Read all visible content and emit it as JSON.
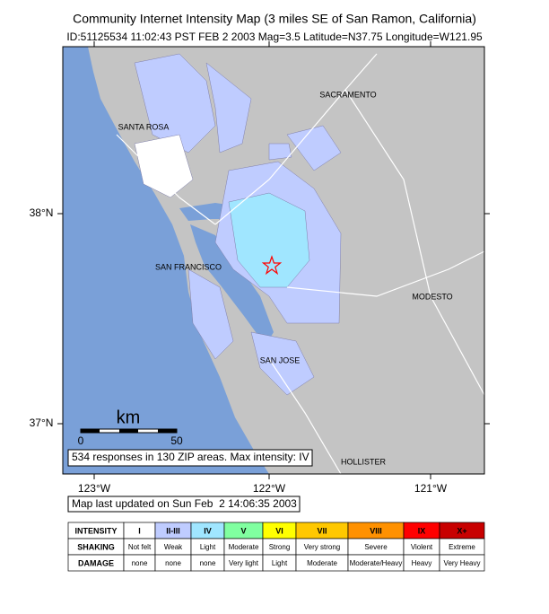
{
  "header": {
    "title": "Community Internet Intensity Map (3 miles SE of San Ramon, California)",
    "subtitle": "ID:51125534 11:02:43 PST FEB 2 2003 Mag=3.5 Latitude=N37.75 Longitude=W121.95"
  },
  "map": {
    "cities": [
      "SACRAMENTO",
      "SANTA ROSA",
      "SAN FRANCISCO",
      "MODESTO",
      "SAN JOSE",
      "HOLLISTER"
    ],
    "lat_labels": [
      "38°N",
      "37°N"
    ],
    "lon_labels": [
      "123°W",
      "122°W",
      "121°W"
    ],
    "scale": {
      "unit": "km",
      "ticks": [
        0,
        50
      ]
    },
    "summary": "534 responses in 130 ZIP areas. Max intensity: IV"
  },
  "updated": "Map last updated on Sun Feb  2 14:06:35 2003",
  "legend": {
    "rows": [
      [
        "INTENSITY",
        "I",
        "II-III",
        "IV",
        "V",
        "VI",
        "VII",
        "VIII",
        "IX",
        "X+"
      ],
      [
        "SHAKING",
        "Not felt",
        "Weak",
        "Light",
        "Moderate",
        "Strong",
        "Very strong",
        "Severe",
        "Violent",
        "Extreme"
      ],
      [
        "DAMAGE",
        "none",
        "none",
        "none",
        "Very light",
        "Light",
        "Moderate",
        "Moderate/Heavy",
        "Heavy",
        "Very Heavy"
      ]
    ],
    "colors": [
      "#ffffff",
      "#bfccff",
      "#a0e6ff",
      "#80ffa0",
      "#ffff00",
      "#ffc800",
      "#ff9100",
      "#ff0000",
      "#c80000"
    ]
  }
}
